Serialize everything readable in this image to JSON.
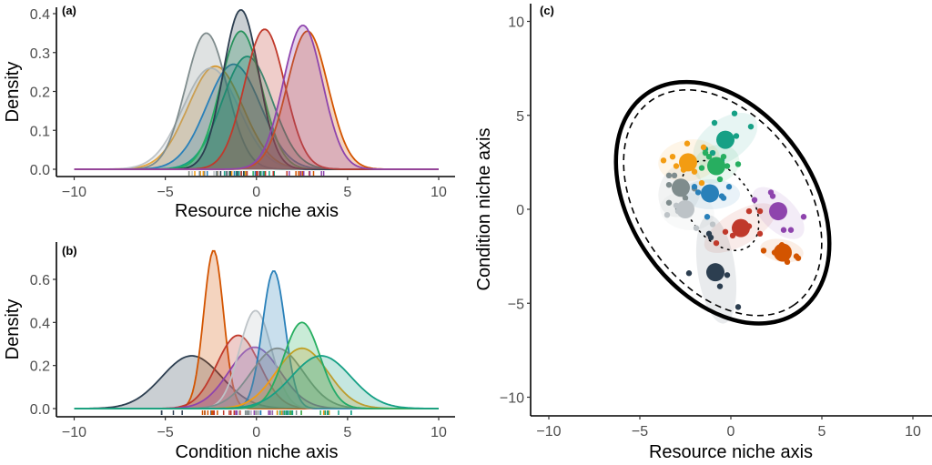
{
  "palette": {
    "navy": "#2c3e50",
    "gray": "#7f8c8d",
    "green": "#27ae60",
    "teal": "#16a085",
    "red": "#c0392b",
    "purple": "#8e44ad",
    "orange": "#d35400",
    "blue": "#2980b9",
    "amber": "#f39c12",
    "lightgray": "#bdc3c7"
  },
  "chart_data": [
    {
      "panel": "(a)",
      "type": "area",
      "title": "",
      "xlabel": "Resource niche axis",
      "ylabel": "Density",
      "xlim": [
        -10,
        10
      ],
      "ylim": [
        0,
        0.42
      ],
      "xticks": [
        "−10",
        "−5",
        "0",
        "5",
        "10"
      ],
      "xtick_values": [
        -10,
        -5,
        0,
        5,
        10
      ],
      "yticks": [
        "0.0",
        "0.1",
        "0.2",
        "0.3",
        "0.4"
      ],
      "ytick_values": [
        0,
        0.1,
        0.2,
        0.3,
        0.4
      ],
      "grid": false,
      "legend": "none",
      "series": [
        {
          "name": "species-amber",
          "color_key": "amber",
          "mean": -2.25,
          "peak_density": 0.265
        },
        {
          "name": "species-lightgray",
          "color_key": "lightgray",
          "mean": -2.5,
          "peak_density": 0.26
        },
        {
          "name": "species-gray",
          "color_key": "gray",
          "mean": -2.75,
          "peak_density": 0.35
        },
        {
          "name": "species-blue",
          "color_key": "blue",
          "mean": -1.25,
          "peak_density": 0.27
        },
        {
          "name": "species-teal",
          "color_key": "teal",
          "mean": -0.5,
          "peak_density": 0.29
        },
        {
          "name": "species-green",
          "color_key": "green",
          "mean": -0.85,
          "peak_density": 0.355
        },
        {
          "name": "species-navy",
          "color_key": "navy",
          "mean": -0.85,
          "peak_density": 0.41
        },
        {
          "name": "species-red",
          "color_key": "red",
          "mean": 0.45,
          "peak_density": 0.36
        },
        {
          "name": "species-orange",
          "color_key": "orange",
          "mean": 2.8,
          "peak_density": 0.355
        },
        {
          "name": "species-purple",
          "color_key": "purple",
          "mean": 2.55,
          "peak_density": 0.37
        }
      ],
      "rug_range": [
        -3.7,
        4.0
      ]
    },
    {
      "panel": "(b)",
      "type": "area",
      "title": "",
      "xlabel": "Condition niche axis",
      "ylabel": "Density",
      "xlim": [
        -10,
        10
      ],
      "ylim": [
        0,
        0.76
      ],
      "xticks": [
        "−10",
        "−5",
        "0",
        "5",
        "10"
      ],
      "xtick_values": [
        -10,
        -5,
        0,
        5,
        10
      ],
      "yticks": [
        "0.0",
        "0.2",
        "0.4",
        "0.6"
      ],
      "ytick_values": [
        0,
        0.2,
        0.4,
        0.6
      ],
      "grid": false,
      "legend": "none",
      "series": [
        {
          "name": "species-navy",
          "color_key": "navy",
          "mean": -3.55,
          "peak_density": 0.245
        },
        {
          "name": "species-orange",
          "color_key": "orange",
          "mean": -2.35,
          "peak_density": 0.735
        },
        {
          "name": "species-red",
          "color_key": "red",
          "mean": -1.0,
          "peak_density": 0.34
        },
        {
          "name": "species-purple",
          "color_key": "purple",
          "mean": -0.1,
          "peak_density": 0.285
        },
        {
          "name": "species-lightgray",
          "color_key": "lightgray",
          "mean": -0.05,
          "peak_density": 0.455
        },
        {
          "name": "species-blue",
          "color_key": "blue",
          "mean": 0.95,
          "peak_density": 0.64
        },
        {
          "name": "species-gray",
          "color_key": "gray",
          "mean": 1.15,
          "peak_density": 0.28
        },
        {
          "name": "species-amber",
          "color_key": "amber",
          "mean": 2.5,
          "peak_density": 0.28
        },
        {
          "name": "species-green",
          "color_key": "green",
          "mean": 2.5,
          "peak_density": 0.4
        },
        {
          "name": "species-teal",
          "color_key": "teal",
          "mean": 3.55,
          "peak_density": 0.245
        }
      ],
      "rug_range": [
        -5.2,
        5.2
      ]
    },
    {
      "panel": "(c)",
      "type": "scatter",
      "title": "",
      "xlabel": "Resource niche axis",
      "ylabel": "Condition niche axis",
      "xlim": [
        -11,
        11
      ],
      "ylim": [
        -11,
        11
      ],
      "xticks": [
        "−10",
        "−5",
        "0",
        "5",
        "10"
      ],
      "xtick_values": [
        -10,
        -5,
        0,
        5,
        10
      ],
      "yticks": [
        "−10",
        "−5",
        "0",
        "5",
        "10"
      ],
      "ytick_values": [
        -10,
        -5,
        0,
        5,
        10
      ],
      "grid": false,
      "legend": "none",
      "centroids": [
        {
          "name": "species-teal",
          "color_key": "teal",
          "x": -0.3,
          "y": 3.7
        },
        {
          "name": "species-amber",
          "color_key": "amber",
          "x": -2.35,
          "y": 2.5
        },
        {
          "name": "species-green",
          "color_key": "green",
          "x": -0.8,
          "y": 2.3
        },
        {
          "name": "species-gray",
          "color_key": "gray",
          "x": -2.75,
          "y": 1.15
        },
        {
          "name": "species-blue",
          "color_key": "blue",
          "x": -1.15,
          "y": 0.85
        },
        {
          "name": "species-lightgray",
          "color_key": "lightgray",
          "x": -2.5,
          "y": 0.0
        },
        {
          "name": "species-red",
          "color_key": "red",
          "x": 0.55,
          "y": -1.0
        },
        {
          "name": "species-purple",
          "color_key": "purple",
          "x": 2.6,
          "y": -0.1
        },
        {
          "name": "species-orange",
          "color_key": "orange",
          "x": 2.85,
          "y": -2.3
        },
        {
          "name": "species-navy",
          "color_key": "navy",
          "x": -0.85,
          "y": -3.35
        }
      ],
      "individuals": [
        {
          "color_key": "teal",
          "points": [
            [
              0.2,
              5.1
            ],
            [
              -0.9,
              4.6
            ],
            [
              1.1,
              4.4
            ],
            [
              0.3,
              3.9
            ],
            [
              -1.4,
              3.2
            ],
            [
              -1.0,
              3.0
            ],
            [
              -0.5,
              2.6
            ]
          ]
        },
        {
          "color_key": "amber",
          "points": [
            [
              -2.4,
              3.5
            ],
            [
              -3.7,
              2.6
            ],
            [
              -3.2,
              2.8
            ],
            [
              -1.5,
              3.3
            ],
            [
              -3.0,
              2.3
            ],
            [
              -2.0,
              2.0
            ],
            [
              -1.6,
              1.4
            ],
            [
              -2.6,
              2.1
            ]
          ]
        },
        {
          "color_key": "green",
          "points": [
            [
              -1.4,
              3.0
            ],
            [
              -1.2,
              2.8
            ],
            [
              -0.4,
              2.8
            ],
            [
              -0.2,
              2.3
            ],
            [
              0.4,
              2.4
            ],
            [
              -0.6,
              1.6
            ],
            [
              -1.6,
              2.2
            ]
          ]
        },
        {
          "color_key": "gray",
          "points": [
            [
              -3.4,
              1.8
            ],
            [
              -3.1,
              1.8
            ],
            [
              -3.4,
              1.3
            ],
            [
              -2.5,
              0.6
            ],
            [
              -3.4,
              0.35
            ],
            [
              -2.9,
              0.0
            ],
            [
              -2.0,
              1.1
            ]
          ]
        },
        {
          "color_key": "blue",
          "points": [
            [
              -2.0,
              1.2
            ],
            [
              -1.8,
              0.9
            ],
            [
              -0.1,
              1.2
            ],
            [
              -0.5,
              0.7
            ],
            [
              -1.3,
              -0.4
            ],
            [
              -0.4,
              0.6
            ]
          ]
        },
        {
          "color_key": "lightgray",
          "points": [
            [
              -3.5,
              -0.3
            ],
            [
              -2.9,
              -0.1
            ],
            [
              -1.9,
              -1.0
            ],
            [
              -1.0,
              -0.8
            ],
            [
              -3.0,
              0.2
            ]
          ]
        },
        {
          "color_key": "red",
          "points": [
            [
              -0.8,
              -1.8
            ],
            [
              -0.3,
              -1.2
            ],
            [
              0.1,
              -1.4
            ],
            [
              1.0,
              -0.9
            ],
            [
              1.6,
              -0.1
            ],
            [
              1.6,
              -1.3
            ],
            [
              0.5,
              -0.8
            ],
            [
              1.0,
              -0.1
            ],
            [
              0.6,
              -1.2
            ]
          ]
        },
        {
          "color_key": "purple",
          "points": [
            [
              2.2,
              0.9
            ],
            [
              2.3,
              0.7
            ],
            [
              4.0,
              -0.4
            ],
            [
              2.9,
              -1.1
            ],
            [
              3.3,
              -1.1
            ],
            [
              1.3,
              0.5
            ]
          ]
        },
        {
          "color_key": "orange",
          "points": [
            [
              1.8,
              -2.2
            ],
            [
              2.8,
              -1.9
            ],
            [
              3.6,
              -2.5
            ],
            [
              3.7,
              -2.6
            ],
            [
              3.1,
              -2.8
            ],
            [
              2.4,
              -2.3
            ]
          ]
        },
        {
          "color_key": "navy",
          "points": [
            [
              -2.3,
              -3.4
            ],
            [
              -0.2,
              -3.5
            ],
            [
              -0.6,
              -4.1
            ],
            [
              0.4,
              -5.2
            ],
            [
              -1.2,
              -1.3
            ],
            [
              -1.1,
              -1.5
            ]
          ]
        }
      ],
      "species_ellipses": [
        {
          "color_key": "teal",
          "cx": -0.3,
          "cy": 3.7,
          "rx": 2.0,
          "ry": 1.1,
          "angle": 35
        },
        {
          "color_key": "amber",
          "cx": -2.3,
          "cy": 2.6,
          "rx": 1.7,
          "ry": 1.1,
          "angle": 10
        },
        {
          "color_key": "green",
          "cx": -0.8,
          "cy": 2.4,
          "rx": 1.3,
          "ry": 1.0,
          "angle": 20
        },
        {
          "color_key": "gray",
          "cx": -2.8,
          "cy": 1.0,
          "rx": 1.5,
          "ry": 1.1,
          "angle": 70
        },
        {
          "color_key": "blue",
          "cx": -1.1,
          "cy": 0.8,
          "rx": 1.6,
          "ry": 0.8,
          "angle": 0
        },
        {
          "color_key": "lightgray",
          "cx": -2.4,
          "cy": -0.1,
          "rx": 1.5,
          "ry": 1.0,
          "angle": -10
        },
        {
          "color_key": "red",
          "cx": 0.5,
          "cy": -1.0,
          "rx": 2.2,
          "ry": 0.9,
          "angle": 30
        },
        {
          "color_key": "purple",
          "cx": 2.6,
          "cy": -0.2,
          "rx": 1.8,
          "ry": 0.9,
          "angle": -45
        },
        {
          "color_key": "orange",
          "cx": 2.8,
          "cy": -2.2,
          "rx": 1.2,
          "ry": 0.6,
          "angle": -10
        },
        {
          "color_key": "navy",
          "cx": -0.8,
          "cy": -3.2,
          "rx": 3.0,
          "ry": 1.0,
          "angle": -82
        }
      ],
      "community_ellipse_solid": {
        "cx": -0.45,
        "cy": 0.35,
        "rx": 7.3,
        "ry": 4.85,
        "angle": -55
      },
      "community_ellipse_dashed": {
        "cx": -0.45,
        "cy": 0.35,
        "rx": 6.85,
        "ry": 4.45,
        "angle": -55
      },
      "centroid_ellipse_dotted": {
        "cx": -0.6,
        "cy": 0.2,
        "rx": 2.75,
        "ry": 1.7,
        "angle": -55
      }
    }
  ]
}
